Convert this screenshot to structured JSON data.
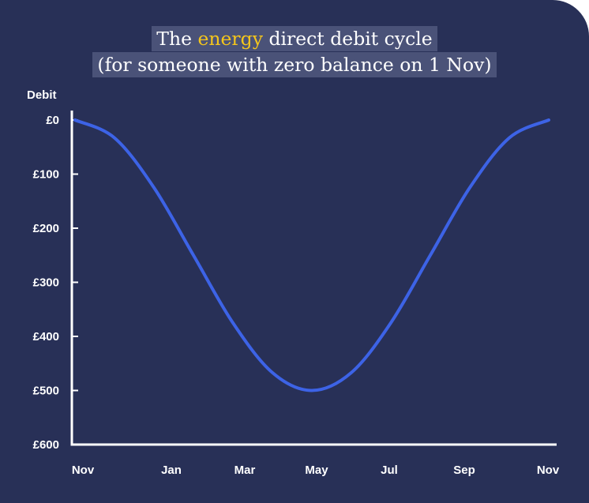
{
  "title": {
    "line1_prefix": "The ",
    "line1_highlight": "energy",
    "line1_suffix": " direct debit cycle",
    "line2": "(for someone with zero balance on 1 Nov)"
  },
  "colors": {
    "background": "#283057",
    "title_bg": "#4a5278",
    "highlight": "#f5c61b",
    "line": "#3d63e6",
    "axis": "#ffffff"
  },
  "chart_data": {
    "type": "line",
    "title": "The energy direct debit cycle (for someone with zero balance on 1 Nov)",
    "ylabel": "Debit",
    "xlabel": "",
    "y_tick_labels": [
      "£0",
      "£100",
      "£200",
      "£300",
      "£400",
      "£500",
      "£600"
    ],
    "y_tick_values": [
      0,
      100,
      200,
      300,
      400,
      500,
      600
    ],
    "x_tick_labels": [
      "Nov",
      "Jan",
      "Mar",
      "May",
      "Jul",
      "Sep",
      "Nov"
    ],
    "x_tick_values": [
      0,
      2,
      4,
      6,
      8,
      10,
      12
    ],
    "ylim": [
      0,
      600
    ],
    "xlim": [
      0,
      12
    ],
    "y_inverted": true,
    "grid": false,
    "legend": "none",
    "series": [
      {
        "x": [
          0,
          1,
          2,
          3,
          4,
          5,
          6,
          7,
          8,
          9,
          10,
          11,
          12
        ],
        "values": [
          0,
          33,
          125,
          250,
          375,
          467,
          500,
          467,
          375,
          250,
          125,
          33,
          0
        ]
      }
    ]
  }
}
